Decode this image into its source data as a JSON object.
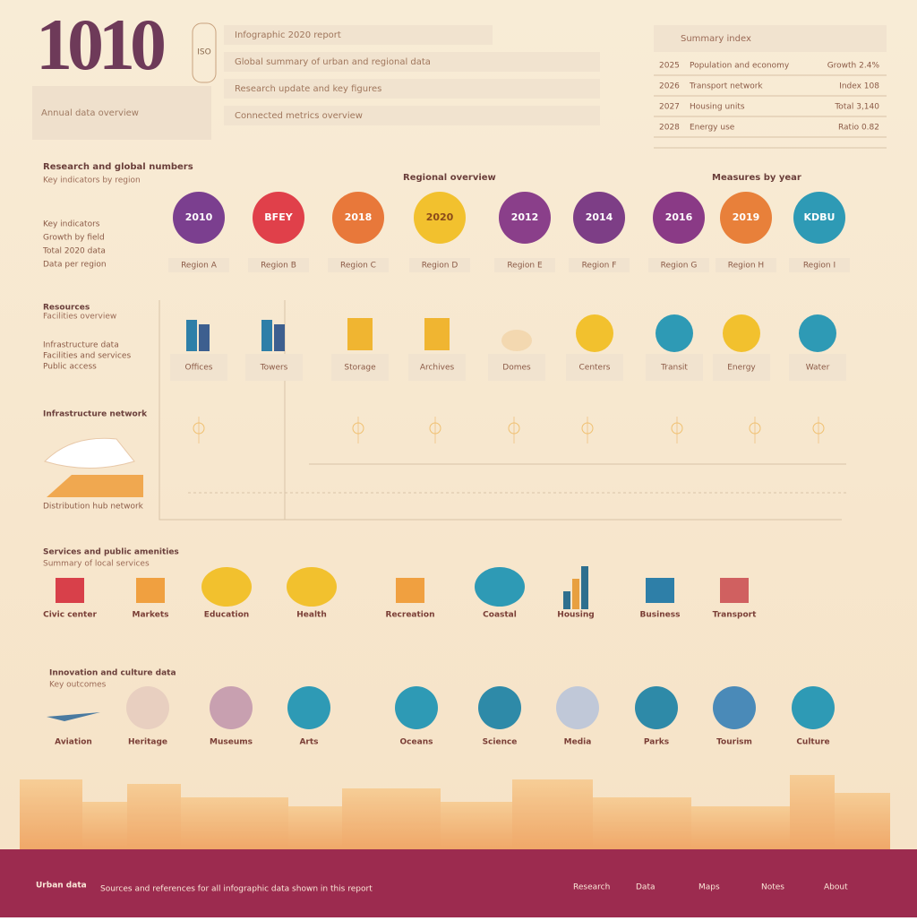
{
  "header": {
    "title": "1010",
    "badge": "ISO",
    "lines": [
      "Infographic 2020 report",
      "Global summary of urban and regional data",
      "Research update and key figures",
      "Connected metrics overview"
    ],
    "note": "Annual data overview"
  },
  "summary_table": {
    "title": "Summary index",
    "rows": [
      [
        "2025",
        "Population and economy",
        "Growth 2.4%"
      ],
      [
        "2026",
        "Transport network",
        "Index 108"
      ],
      [
        "2027",
        "Housing units",
        "Total 3,140"
      ],
      [
        "2028",
        "Energy use",
        "Ratio 0.82"
      ]
    ]
  },
  "section1": {
    "title": "Research and global numbers",
    "subtitle": "Key indicators by region",
    "side": [
      "Key indicators",
      "Growth by field",
      "Total 2020 data",
      "Data per region"
    ],
    "heading_mid": "Regional overview",
    "heading_right": "Measures by year",
    "items": [
      {
        "value": "2010",
        "caption": "Region A"
      },
      {
        "value": "BFEY",
        "caption": "Region B"
      },
      {
        "value": "2018",
        "caption": "Region C"
      },
      {
        "value": "2020",
        "caption": "Region D"
      },
      {
        "value": "2012",
        "caption": "Region E"
      },
      {
        "value": "2014",
        "caption": "Region F"
      },
      {
        "value": "2016",
        "caption": "Region G"
      },
      {
        "value": "2019",
        "caption": "Region H"
      },
      {
        "value": "KDBU",
        "caption": "Region I"
      }
    ]
  },
  "section2": {
    "title": "Resources",
    "subtitle": "Facilities overview",
    "side": [
      "Infrastructure data",
      "Facilities and services",
      "Public access"
    ],
    "items": [
      "Offices",
      "Towers",
      "Storage",
      "Archives",
      "Domes",
      "Centers",
      "Transit",
      "Energy",
      "Water"
    ]
  },
  "section3": {
    "title": "Infrastructure network",
    "caption": "Distribution hub network"
  },
  "section4": {
    "title": "Services and public amenities",
    "subtitle": "Summary of local services",
    "items": [
      "Civic center",
      "Markets",
      "Education",
      "Health",
      "Recreation",
      "Coastal",
      "Housing",
      "Business",
      "Transport"
    ]
  },
  "section5": {
    "title": "Innovation and culture data",
    "subtitle": "Key outcomes",
    "items": [
      "Aviation",
      "Heritage",
      "Museums",
      "Arts",
      "Oceans",
      "Science",
      "Media",
      "Parks",
      "Tourism",
      "Culture"
    ]
  },
  "footer": {
    "brand": "Urban data",
    "text": "Sources and references for all infographic data shown in this report",
    "links": [
      "Research",
      "Data",
      "Maps",
      "Notes",
      "About"
    ]
  }
}
